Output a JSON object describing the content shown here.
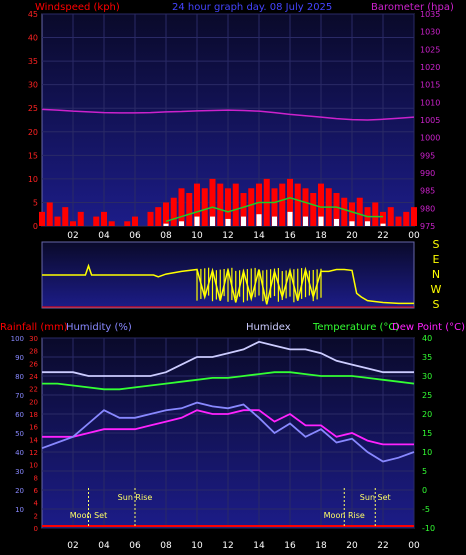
{
  "chart_data": [
    {
      "type": "line",
      "title": "24 hour graph day. 08 July 2025",
      "left_axis_label": "Windspeed (kph)",
      "right_axis_label": "Barometer (hpa)",
      "left_ylim": [
        0,
        45
      ],
      "left_ticks": [
        "0",
        "5",
        "10",
        "15",
        "20",
        "25",
        "30",
        "35",
        "40",
        "45"
      ],
      "right_ylim": [
        975,
        1035
      ],
      "right_ticks": [
        "975",
        "980",
        "985",
        "990",
        "995",
        "1000",
        "1005",
        "1010",
        "1015",
        "1020",
        "1025",
        "1030",
        "1035"
      ],
      "x_ticks": [
        "02",
        "04",
        "06",
        "08",
        "10",
        "12",
        "14",
        "16",
        "18",
        "20",
        "22",
        "00"
      ],
      "grid": true,
      "series": [
        {
          "color": "#cc22cc",
          "x": [
            0,
            1,
            2,
            3,
            4,
            5,
            6,
            7,
            8,
            9,
            10,
            11,
            12,
            13,
            14,
            15,
            16,
            17,
            18,
            19,
            20,
            21,
            22,
            23,
            24
          ],
          "values": [
            1008,
            1007.8,
            1007.5,
            1007.3,
            1007.1,
            1007,
            1007,
            1007.1,
            1007.3,
            1007.4,
            1007.6,
            1007.7,
            1007.8,
            1007.7,
            1007.5,
            1007.1,
            1006.6,
            1006.2,
            1005.8,
            1005.4,
            1005.1,
            1005,
            1005.2,
            1005.5,
            1005.8
          ]
        },
        {
          "color": "#ff0000",
          "x": [
            0,
            0.5,
            1,
            1.5,
            2,
            2.5,
            3,
            3.5,
            4,
            4.5,
            5,
            5.5,
            6,
            6.5,
            7,
            7.5,
            8,
            8.5,
            9,
            9.5,
            10,
            10.5,
            11,
            11.5,
            12,
            12.5,
            13,
            13.5,
            14,
            14.5,
            15,
            15.5,
            16,
            16.5,
            17,
            17.5,
            18,
            18.5,
            19,
            19.5,
            20,
            20.5,
            21,
            21.5,
            22,
            22.5,
            23,
            23.5,
            24
          ],
          "values": [
            3,
            5,
            2,
            4,
            1,
            3,
            0,
            2,
            3,
            1,
            0,
            1,
            2,
            0,
            3,
            4,
            5,
            6,
            8,
            7,
            9,
            8,
            10,
            9,
            8,
            9,
            7,
            8,
            9,
            10,
            8,
            9,
            10,
            9,
            8,
            7,
            9,
            8,
            7,
            6,
            5,
            6,
            4,
            5,
            3,
            4,
            2,
            3,
            4
          ]
        },
        {
          "color": "#22cc22",
          "x": [
            8,
            9,
            10,
            11,
            12,
            13,
            14,
            15,
            16,
            17,
            18,
            19,
            20,
            21,
            22
          ],
          "values": [
            1,
            2,
            3,
            4,
            3,
            4,
            5,
            5,
            6,
            5,
            4,
            4,
            3,
            2,
            2
          ]
        },
        {
          "color": "#ffffff",
          "x": [
            8,
            9,
            10,
            11,
            12,
            13,
            14,
            15,
            16,
            17,
            18,
            19,
            20,
            21,
            22
          ],
          "values": [
            0.5,
            1,
            2,
            2,
            1.5,
            2,
            2.5,
            2,
            3,
            2,
            2,
            1.5,
            1,
            1,
            0.5
          ]
        }
      ]
    },
    {
      "type": "line",
      "title": "",
      "right_labels": [
        "S",
        "E",
        "N",
        "W",
        "S"
      ],
      "x_ticks": [
        "02",
        "04",
        "06",
        "08",
        "10",
        "12",
        "14",
        "16",
        "18",
        "20",
        "22",
        "00"
      ],
      "series": [
        {
          "color": "#ffff00",
          "x": [
            0,
            2.8,
            3,
            3.2,
            5,
            7.2,
            7.5,
            8,
            9,
            10,
            10.5,
            11,
            11.5,
            12,
            12.5,
            13,
            13.5,
            14,
            14.5,
            15,
            15.5,
            16,
            16.5,
            17,
            17.5,
            18,
            18.5,
            19,
            19.5,
            20,
            20.3,
            20.6,
            21,
            22,
            23,
            24
          ],
          "values": [
            180,
            180,
            230,
            180,
            180,
            180,
            170,
            185,
            200,
            210,
            60,
            205,
            40,
            210,
            30,
            200,
            50,
            210,
            20,
            200,
            60,
            205,
            40,
            210,
            60,
            200,
            200,
            210,
            210,
            205,
            80,
            60,
            40,
            30,
            25,
            25
          ]
        }
      ]
    },
    {
      "type": "line",
      "title": "",
      "legend": [
        "Rainfall (mm)",
        "Humidity (%)",
        "Humidex",
        "Temperature (°C)",
        "Dew Point (°C)"
      ],
      "rain_ticks": [
        "0",
        "2",
        "4",
        "6",
        "8",
        "10",
        "12",
        "14",
        "16",
        "18",
        "20",
        "22",
        "24",
        "26",
        "28",
        "30"
      ],
      "humidity_ticks": [
        "10",
        "20",
        "30",
        "40",
        "50",
        "60",
        "70",
        "80",
        "90",
        "100"
      ],
      "temp_ticks": [
        "-10",
        "-5",
        "0",
        "5",
        "10",
        "15",
        "20",
        "25",
        "30",
        "35",
        "40"
      ],
      "temp_ylim": [
        -10,
        40
      ],
      "x_ticks": [
        "02",
        "04",
        "06",
        "08",
        "10",
        "12",
        "14",
        "16",
        "18",
        "20",
        "22",
        "00"
      ],
      "annotations": [
        "Moon Set",
        "Sun Rise",
        "Moon Rise",
        "Sun Set"
      ],
      "series": [
        {
          "name": "Rainfall (mm)",
          "color": "#ff0000",
          "x": [
            0,
            24
          ],
          "values": [
            0,
            0
          ]
        },
        {
          "name": "Humidex",
          "color": "#ccccff",
          "x": [
            0,
            1,
            2,
            3,
            4,
            5,
            6,
            7,
            8,
            9,
            10,
            11,
            12,
            13,
            14,
            15,
            16,
            17,
            18,
            19,
            20,
            21,
            22,
            23,
            24
          ],
          "values": [
            31,
            31,
            31,
            30,
            30,
            30,
            30,
            30,
            31,
            33,
            35,
            35,
            36,
            37,
            39,
            38,
            37,
            37,
            36,
            34,
            33,
            32,
            31,
            31,
            31
          ]
        },
        {
          "name": "Temperature (°C)",
          "color": "#33ff33",
          "x": [
            0,
            1,
            2,
            3,
            4,
            5,
            6,
            7,
            8,
            9,
            10,
            11,
            12,
            13,
            14,
            15,
            16,
            17,
            18,
            19,
            20,
            21,
            22,
            23,
            24
          ],
          "values": [
            28,
            28,
            27.5,
            27,
            26.5,
            26.5,
            27,
            27.5,
            28,
            28.5,
            29,
            29.5,
            29.5,
            30,
            30.5,
            31,
            31,
            30.5,
            30,
            30,
            30,
            29.5,
            29,
            28.5,
            28
          ]
        },
        {
          "name": "Dew Point (°C)",
          "color": "#ff22ff",
          "x": [
            0,
            1,
            2,
            3,
            4,
            5,
            6,
            7,
            8,
            9,
            10,
            11,
            12,
            13,
            14,
            15,
            16,
            17,
            18,
            19,
            20,
            21,
            22,
            23,
            24
          ],
          "values": [
            14,
            14,
            14,
            15,
            16,
            16,
            16,
            17,
            18,
            19,
            21,
            20,
            20,
            21,
            21,
            18,
            20,
            17,
            17,
            14,
            15,
            13,
            12,
            12,
            12
          ]
        },
        {
          "name": "Humidity (%)",
          "color": "#8888ff",
          "x": [
            0,
            1,
            2,
            3,
            4,
            5,
            6,
            7,
            8,
            9,
            10,
            11,
            12,
            13,
            14,
            15,
            16,
            17,
            18,
            19,
            20,
            21,
            22,
            23,
            24
          ],
          "values": [
            42,
            45,
            48,
            55,
            62,
            58,
            58,
            60,
            62,
            63,
            66,
            64,
            63,
            65,
            58,
            50,
            55,
            48,
            52,
            45,
            47,
            40,
            35,
            37,
            40
          ]
        }
      ]
    }
  ]
}
